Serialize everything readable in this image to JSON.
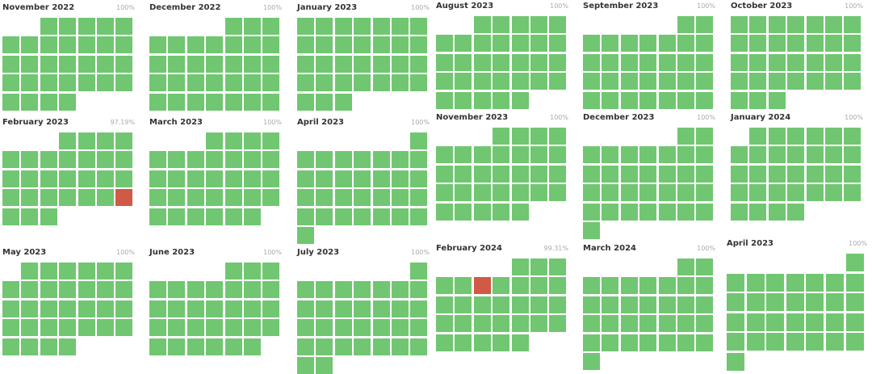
{
  "status_colors": {
    "operational": "#71c671",
    "outage": "#d05a45"
  },
  "months": [
    {
      "name": "November 2022",
      "percent": "100%",
      "first_weekday": 2,
      "days": 30,
      "outage_days": []
    },
    {
      "name": "December 2022",
      "percent": "100%",
      "first_weekday": 4,
      "days": 31,
      "outage_days": []
    },
    {
      "name": "January 2023",
      "percent": "100%",
      "first_weekday": 0,
      "days": 31,
      "outage_days": []
    },
    {
      "name": "August 2023",
      "percent": "100%",
      "first_weekday": 2,
      "days": 31,
      "outage_days": []
    },
    {
      "name": "September 2023",
      "percent": "100%",
      "first_weekday": 5,
      "days": 30,
      "outage_days": []
    },
    {
      "name": "October 2023",
      "percent": "100%",
      "first_weekday": 0,
      "days": 31,
      "outage_days": []
    },
    {
      "name": "February 2023",
      "percent": "97.19%",
      "first_weekday": 3,
      "days": 28,
      "outage_days": [
        25
      ]
    },
    {
      "name": "March 2023",
      "percent": "100%",
      "first_weekday": 3,
      "days": 31,
      "outage_days": []
    },
    {
      "name": "April 2023",
      "percent": "100%",
      "first_weekday": 6,
      "days": 30,
      "outage_days": []
    },
    {
      "name": "November 2023",
      "percent": "100%",
      "first_weekday": 3,
      "days": 30,
      "outage_days": []
    },
    {
      "name": "December 2023",
      "percent": "100%",
      "first_weekday": 5,
      "days": 31,
      "outage_days": []
    },
    {
      "name": "January 2024",
      "percent": "100%",
      "first_weekday": 1,
      "days": 31,
      "outage_days": []
    },
    {
      "name": "May 2023",
      "percent": "100%",
      "first_weekday": 1,
      "days": 31,
      "outage_days": []
    },
    {
      "name": "June 2023",
      "percent": "100%",
      "first_weekday": 4,
      "days": 30,
      "outage_days": []
    },
    {
      "name": "July 2023",
      "percent": "100%",
      "first_weekday": 6,
      "days": 31,
      "outage_days": []
    },
    {
      "name": "February 2024",
      "percent": "99.31%",
      "first_weekday": 4,
      "days": 29,
      "outage_days": [
        6
      ]
    },
    {
      "name": "March 2024",
      "percent": "100%",
      "first_weekday": 5,
      "days": 31,
      "outage_days": []
    },
    {
      "name": "April 2023",
      "percent": "100%",
      "first_weekday": 6,
      "days": 30,
      "outage_days": []
    }
  ]
}
